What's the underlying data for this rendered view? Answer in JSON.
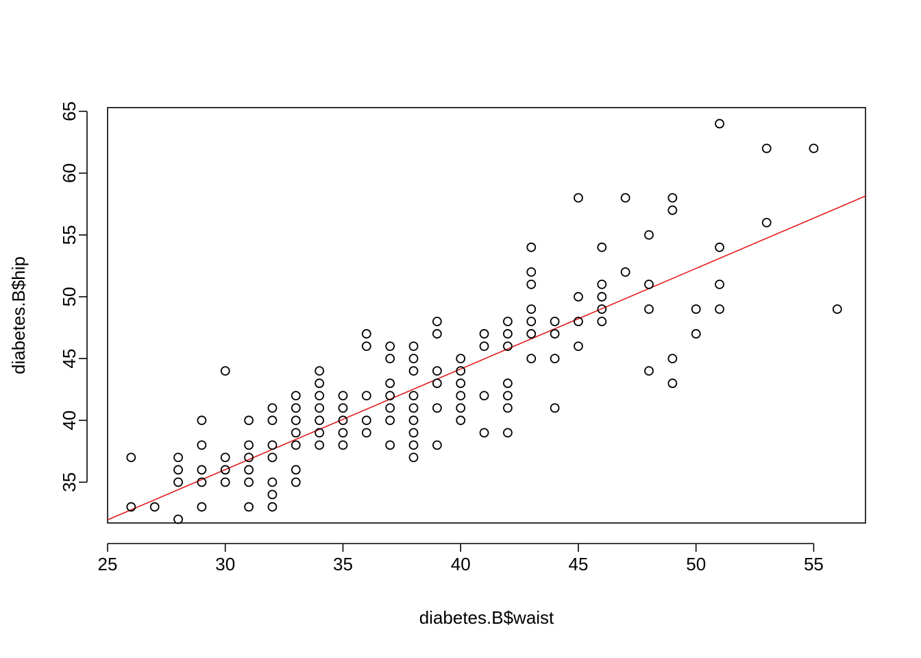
{
  "chart_data": {
    "type": "scatter",
    "title": "",
    "xlabel": "diabetes.B$waist",
    "ylabel": "diabetes.B$hip",
    "xlim": [
      25,
      57.2
    ],
    "ylim": [
      31.7,
      65.3
    ],
    "x_ticks": [
      25,
      30,
      35,
      40,
      45,
      50,
      55
    ],
    "y_ticks": [
      35,
      40,
      45,
      50,
      55,
      60,
      65
    ],
    "grid": false,
    "point_style": "open circle",
    "point_color": "#000000",
    "fit_line": {
      "type": "linear regression",
      "color": "#e31a1c",
      "start": [
        25,
        31.95
      ],
      "end": [
        57.2,
        58.15
      ]
    },
    "series": [
      {
        "points": [
          [
            26,
            37
          ],
          [
            26,
            33
          ],
          [
            27,
            33
          ],
          [
            28,
            37
          ],
          [
            28,
            36
          ],
          [
            28,
            35
          ],
          [
            28,
            32
          ],
          [
            29,
            40
          ],
          [
            29,
            38
          ],
          [
            29,
            36
          ],
          [
            29,
            35
          ],
          [
            29,
            33
          ],
          [
            30,
            44
          ],
          [
            30,
            37
          ],
          [
            30,
            36
          ],
          [
            30,
            35
          ],
          [
            31,
            40
          ],
          [
            31,
            38
          ],
          [
            31,
            37
          ],
          [
            31,
            36
          ],
          [
            31,
            35
          ],
          [
            31,
            33
          ],
          [
            32,
            41
          ],
          [
            32,
            40
          ],
          [
            32,
            38
          ],
          [
            32,
            37
          ],
          [
            32,
            35
          ],
          [
            32,
            34
          ],
          [
            32,
            33
          ],
          [
            33,
            42
          ],
          [
            33,
            41
          ],
          [
            33,
            40
          ],
          [
            33,
            39
          ],
          [
            33,
            38
          ],
          [
            33,
            36
          ],
          [
            33,
            35
          ],
          [
            34,
            44
          ],
          [
            34,
            43
          ],
          [
            34,
            42
          ],
          [
            34,
            41
          ],
          [
            34,
            40
          ],
          [
            34,
            39
          ],
          [
            34,
            38
          ],
          [
            35,
            42
          ],
          [
            35,
            41
          ],
          [
            35,
            40
          ],
          [
            35,
            39
          ],
          [
            35,
            38
          ],
          [
            36,
            47
          ],
          [
            36,
            46
          ],
          [
            36,
            42
          ],
          [
            36,
            40
          ],
          [
            36,
            39
          ],
          [
            37,
            46
          ],
          [
            37,
            45
          ],
          [
            37,
            43
          ],
          [
            37,
            42
          ],
          [
            37,
            41
          ],
          [
            37,
            40
          ],
          [
            37,
            38
          ],
          [
            38,
            46
          ],
          [
            38,
            45
          ],
          [
            38,
            44
          ],
          [
            38,
            42
          ],
          [
            38,
            41
          ],
          [
            38,
            40
          ],
          [
            38,
            39
          ],
          [
            38,
            38
          ],
          [
            38,
            37
          ],
          [
            39,
            48
          ],
          [
            39,
            47
          ],
          [
            39,
            44
          ],
          [
            39,
            43
          ],
          [
            39,
            41
          ],
          [
            39,
            38
          ],
          [
            40,
            45
          ],
          [
            40,
            44
          ],
          [
            40,
            43
          ],
          [
            40,
            42
          ],
          [
            40,
            41
          ],
          [
            40,
            40
          ],
          [
            41,
            47
          ],
          [
            41,
            46
          ],
          [
            41,
            42
          ],
          [
            41,
            39
          ],
          [
            42,
            48
          ],
          [
            42,
            47
          ],
          [
            42,
            46
          ],
          [
            42,
            43
          ],
          [
            42,
            42
          ],
          [
            42,
            41
          ],
          [
            42,
            39
          ],
          [
            43,
            54
          ],
          [
            43,
            52
          ],
          [
            43,
            51
          ],
          [
            43,
            49
          ],
          [
            43,
            48
          ],
          [
            43,
            47
          ],
          [
            43,
            45
          ],
          [
            44,
            48
          ],
          [
            44,
            47
          ],
          [
            44,
            45
          ],
          [
            44,
            41
          ],
          [
            45,
            58
          ],
          [
            45,
            50
          ],
          [
            45,
            48
          ],
          [
            45,
            46
          ],
          [
            46,
            54
          ],
          [
            46,
            51
          ],
          [
            46,
            50
          ],
          [
            46,
            49
          ],
          [
            46,
            48
          ],
          [
            47,
            58
          ],
          [
            47,
            52
          ],
          [
            48,
            55
          ],
          [
            48,
            51
          ],
          [
            48,
            49
          ],
          [
            48,
            44
          ],
          [
            49,
            58
          ],
          [
            49,
            57
          ],
          [
            49,
            45
          ],
          [
            49,
            43
          ],
          [
            50,
            49
          ],
          [
            50,
            47
          ],
          [
            51,
            64
          ],
          [
            51,
            54
          ],
          [
            51,
            51
          ],
          [
            51,
            49
          ],
          [
            53,
            62
          ],
          [
            53,
            56
          ],
          [
            55,
            62
          ],
          [
            56,
            49
          ]
        ]
      }
    ]
  }
}
